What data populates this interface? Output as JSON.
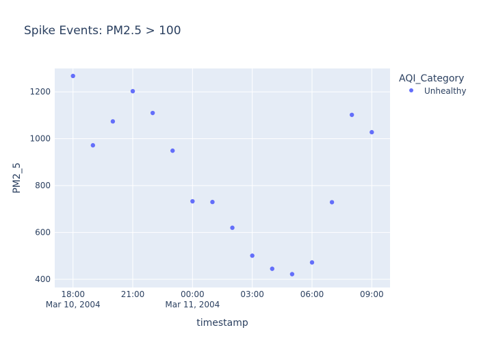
{
  "colors": {
    "plot_background": "#e5ecf6",
    "grid": "#ffffff",
    "marker": "#636efa",
    "text": "#2a3f5f"
  },
  "chart_data": {
    "type": "scatter",
    "title": "Spike Events: PM2.5 > 100",
    "xlabel": "timestamp",
    "ylabel": "PM2_5",
    "legend": {
      "title": "AQI_Category",
      "placement": "top-right",
      "entries": [
        "Unhealthy"
      ]
    },
    "grid": true,
    "xlim": [
      "2004-03-10 17:05",
      "2004-03-11 09:55"
    ],
    "ylim": [
      365,
      1300
    ],
    "y_ticks": [
      400,
      600,
      800,
      1000,
      1200
    ],
    "x_ticks": [
      {
        "value": "2004-03-10 18:00",
        "label": "18:00",
        "sublabel": "Mar 10, 2004"
      },
      {
        "value": "2004-03-10 21:00",
        "label": "21:00",
        "sublabel": ""
      },
      {
        "value": "2004-03-11 00:00",
        "label": "00:00",
        "sublabel": "Mar 11, 2004"
      },
      {
        "value": "2004-03-11 03:00",
        "label": "03:00",
        "sublabel": ""
      },
      {
        "value": "2004-03-11 06:00",
        "label": "06:00",
        "sublabel": ""
      },
      {
        "value": "2004-03-11 09:00",
        "label": "09:00",
        "sublabel": ""
      }
    ],
    "series": [
      {
        "name": "Unhealthy",
        "color": "#636efa",
        "points": [
          {
            "x": "2004-03-10 18:00",
            "y": 1268
          },
          {
            "x": "2004-03-10 19:00",
            "y": 972
          },
          {
            "x": "2004-03-10 20:00",
            "y": 1074
          },
          {
            "x": "2004-03-10 21:00",
            "y": 1203
          },
          {
            "x": "2004-03-10 22:00",
            "y": 1110
          },
          {
            "x": "2004-03-10 23:00",
            "y": 949
          },
          {
            "x": "2004-03-11 00:00",
            "y": 733
          },
          {
            "x": "2004-03-11 01:00",
            "y": 730
          },
          {
            "x": "2004-03-11 02:00",
            "y": 620
          },
          {
            "x": "2004-03-11 03:00",
            "y": 501
          },
          {
            "x": "2004-03-11 04:00",
            "y": 445
          },
          {
            "x": "2004-03-11 05:00",
            "y": 422
          },
          {
            "x": "2004-03-11 06:00",
            "y": 472
          },
          {
            "x": "2004-03-11 07:00",
            "y": 729
          },
          {
            "x": "2004-03-11 08:00",
            "y": 1102
          },
          {
            "x": "2004-03-11 09:00",
            "y": 1028
          }
        ]
      }
    ]
  }
}
